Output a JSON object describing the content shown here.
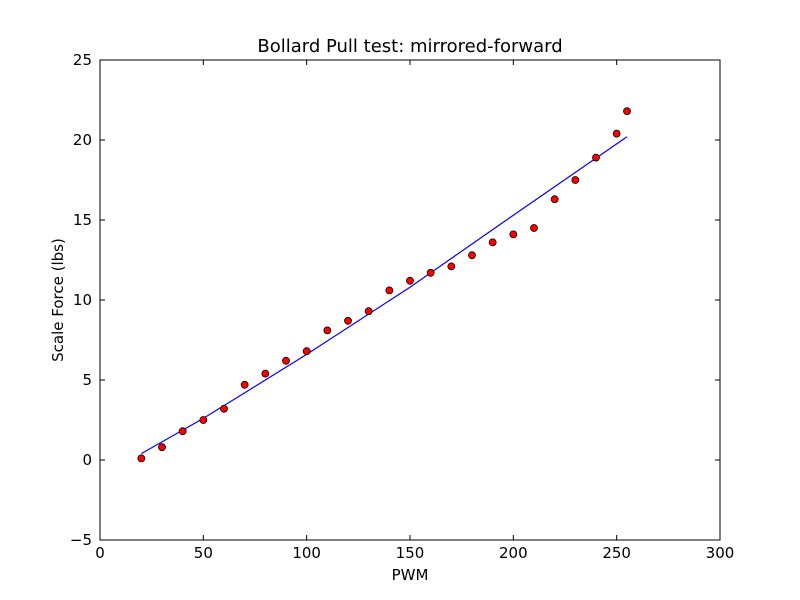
{
  "chart_data": {
    "type": "scatter",
    "title": "Bollard Pull test: mirrored-forward",
    "xlabel": "PWM",
    "ylabel": "Scale Force (lbs)",
    "xlim": [
      0,
      300
    ],
    "ylim": [
      -5,
      25
    ],
    "x_ticks": [
      0,
      50,
      100,
      150,
      200,
      250,
      300
    ],
    "y_ticks": [
      -5,
      0,
      5,
      10,
      15,
      20,
      25
    ],
    "grid": false,
    "legend": "none",
    "series": [
      {
        "kind": "scatter",
        "color": "#ff0000",
        "edge_color": "#000000",
        "points": [
          {
            "x": 20,
            "y": 0.1
          },
          {
            "x": 30,
            "y": 0.8
          },
          {
            "x": 40,
            "y": 1.8
          },
          {
            "x": 50,
            "y": 2.5
          },
          {
            "x": 60,
            "y": 3.2
          },
          {
            "x": 70,
            "y": 4.7
          },
          {
            "x": 80,
            "y": 5.4
          },
          {
            "x": 90,
            "y": 6.2
          },
          {
            "x": 100,
            "y": 6.8
          },
          {
            "x": 110,
            "y": 8.1
          },
          {
            "x": 120,
            "y": 8.7
          },
          {
            "x": 130,
            "y": 9.3
          },
          {
            "x": 140,
            "y": 10.6
          },
          {
            "x": 150,
            "y": 11.2
          },
          {
            "x": 160,
            "y": 11.7
          },
          {
            "x": 170,
            "y": 12.1
          },
          {
            "x": 180,
            "y": 12.8
          },
          {
            "x": 190,
            "y": 13.6
          },
          {
            "x": 200,
            "y": 14.1
          },
          {
            "x": 210,
            "y": 14.5
          },
          {
            "x": 220,
            "y": 16.3
          },
          {
            "x": 230,
            "y": 17.5
          },
          {
            "x": 240,
            "y": 18.9
          },
          {
            "x": 250,
            "y": 20.4
          },
          {
            "x": 255,
            "y": 21.8
          }
        ]
      },
      {
        "kind": "line",
        "color": "#0000ff",
        "points": [
          {
            "x": 20,
            "y": 0.4
          },
          {
            "x": 50,
            "y": 2.6
          },
          {
            "x": 100,
            "y": 6.6
          },
          {
            "x": 150,
            "y": 10.8
          },
          {
            "x": 200,
            "y": 15.3
          },
          {
            "x": 255,
            "y": 20.2
          }
        ]
      }
    ]
  }
}
